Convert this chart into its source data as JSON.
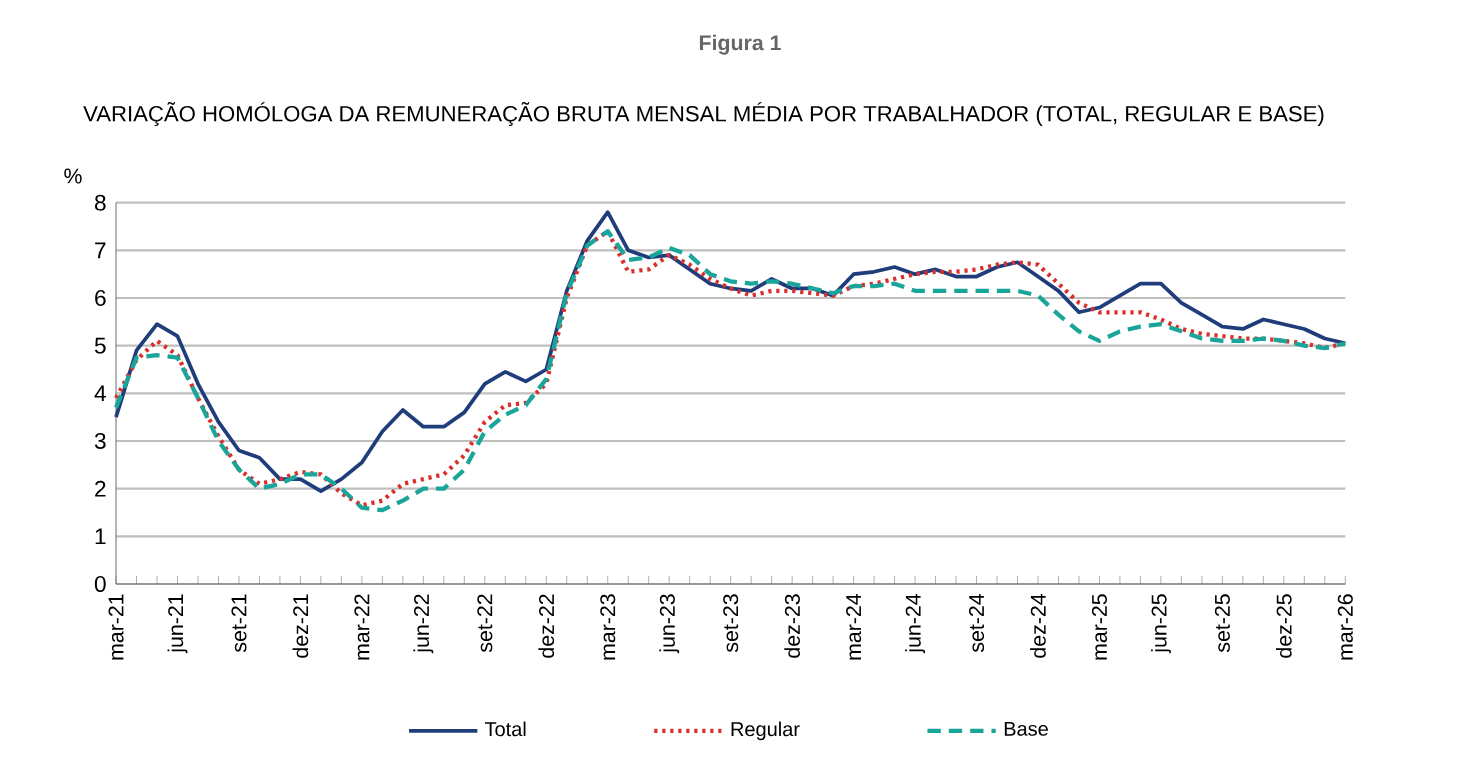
{
  "chart_data": {
    "type": "line",
    "title": "Figura 1",
    "subtitle": "VARIAÇÃO HOMÓLOGA DA REMUNERAÇÃO BRUTA MENSAL MÉDIA POR TRABALHADOR (TOTAL, REGULAR E BASE)",
    "ylabel": "%",
    "categories": [
      "mar-21",
      null,
      null,
      "jun-21",
      null,
      null,
      "set-21",
      null,
      null,
      "dez-21",
      null,
      null,
      "mar-22",
      null,
      null,
      "jun-22",
      null,
      null,
      "set-22",
      null,
      null,
      "dez-22",
      null,
      null,
      "mar-23",
      null,
      null,
      "jun-23",
      null,
      null,
      "set-23",
      null,
      null,
      "dez-23",
      null,
      null,
      "mar-24",
      null,
      null,
      "jun-24",
      null,
      null,
      "set-24",
      null,
      null,
      "dez-24",
      null,
      null,
      "mar-25",
      null,
      null,
      "jun-25",
      null,
      null,
      "set-25",
      null,
      null,
      "dez-25",
      null,
      null,
      "mar-26"
    ],
    "series": [
      {
        "name": "Total",
        "color": "#1f3d7a",
        "line_style": "solid",
        "values": [
          3.5,
          4.9,
          5.45,
          5.2,
          4.2,
          3.4,
          2.8,
          2.65,
          2.2,
          2.2,
          1.95,
          2.2,
          2.55,
          3.2,
          3.65,
          3.3,
          3.3,
          3.6,
          4.2,
          4.45,
          4.25,
          4.5,
          6.15,
          7.2,
          7.8,
          7.0,
          6.85,
          6.9,
          6.6,
          6.3,
          6.2,
          6.15,
          6.4,
          6.2,
          6.2,
          6.05,
          6.5,
          6.55,
          6.65,
          6.5,
          6.6,
          6.45,
          6.45,
          6.65,
          6.75,
          6.45,
          6.15,
          5.7,
          5.8,
          6.05,
          6.3,
          6.3,
          5.9,
          5.65,
          5.4,
          5.35,
          5.55,
          5.45,
          5.35,
          5.15,
          5.05
        ]
      },
      {
        "name": "Regular",
        "color": "#d9302c",
        "line_style": "dotted",
        "values": [
          3.9,
          4.7,
          5.1,
          4.8,
          3.9,
          3.1,
          2.4,
          2.1,
          2.2,
          2.35,
          2.3,
          1.9,
          1.65,
          1.75,
          2.1,
          2.2,
          2.3,
          2.7,
          3.4,
          3.75,
          3.8,
          4.2,
          6.0,
          7.1,
          7.4,
          6.55,
          6.6,
          6.9,
          6.7,
          6.4,
          6.2,
          6.05,
          6.15,
          6.15,
          6.1,
          6.05,
          6.25,
          6.3,
          6.4,
          6.5,
          6.55,
          6.55,
          6.6,
          6.7,
          6.75,
          6.7,
          6.3,
          5.9,
          5.7,
          5.7,
          5.7,
          5.55,
          5.35,
          5.25,
          5.2,
          5.15,
          5.15,
          5.1,
          5.05,
          4.95,
          5.05
        ]
      },
      {
        "name": "Base",
        "color": "#1aa59a",
        "line_style": "dashed",
        "values": [
          3.7,
          4.75,
          4.8,
          4.75,
          3.9,
          3.0,
          2.4,
          2.0,
          2.1,
          2.3,
          2.3,
          2.0,
          1.6,
          1.55,
          1.75,
          2.0,
          2.0,
          2.4,
          3.2,
          3.55,
          3.75,
          4.3,
          6.1,
          7.1,
          7.4,
          6.8,
          6.85,
          7.05,
          6.9,
          6.5,
          6.35,
          6.3,
          6.35,
          6.3,
          6.2,
          6.1,
          6.25,
          6.25,
          6.3,
          6.15,
          6.15,
          6.15,
          6.15,
          6.15,
          6.15,
          6.05,
          5.65,
          5.3,
          5.1,
          5.3,
          5.4,
          5.45,
          5.3,
          5.15,
          5.1,
          5.1,
          5.15,
          5.1,
          5.0,
          4.95,
          5.05
        ]
      }
    ],
    "ylim": [
      0,
      8
    ],
    "yticks": [
      0,
      1,
      2,
      3,
      4,
      5,
      6,
      7,
      8
    ],
    "grid": "y",
    "legend": "bottom",
    "marker": "none"
  }
}
